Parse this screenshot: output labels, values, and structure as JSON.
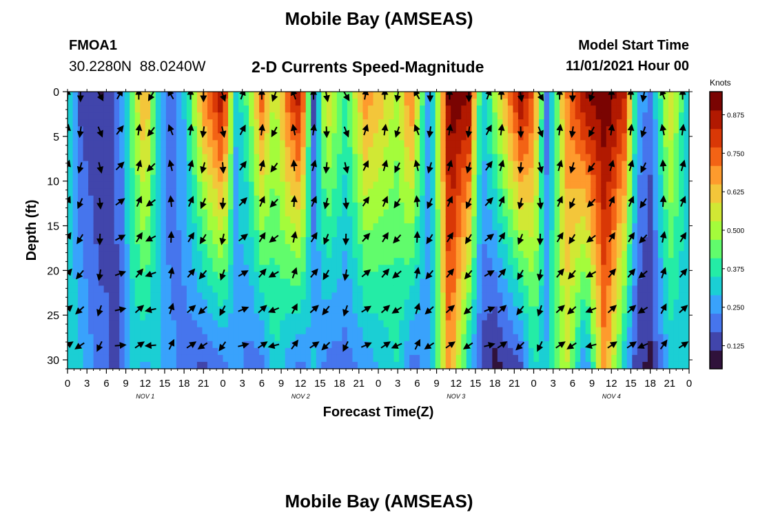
{
  "header": {
    "title": "Mobile Bay (AMSEAS)",
    "station_id": "FMOA1",
    "coordinates": "30.2280N  88.0240W",
    "subtitle": "2-D Currents Speed-Magnitude",
    "model_start_label": "Model Start Time",
    "model_start_value": "11/01/2021 Hour 00"
  },
  "footer": {
    "title": "Mobile Bay (AMSEAS)"
  },
  "chart_data": {
    "type": "heatmap",
    "title": "2-D Currents Speed-Magnitude",
    "xlabel": "Forecast Time(Z)",
    "ylabel": "Depth (ft)",
    "x_hours_range": [
      0,
      96
    ],
    "x_tick_labels": [
      "0",
      "3",
      "6",
      "9",
      "12",
      "15",
      "18",
      "21",
      "0",
      "3",
      "6",
      "9",
      "12",
      "15",
      "18",
      "21",
      "0",
      "3",
      "6",
      "9",
      "12",
      "15",
      "18",
      "21",
      "0",
      "3",
      "6",
      "9",
      "12",
      "15",
      "18",
      "21",
      "0"
    ],
    "day_labels": [
      "NOV 1",
      "NOV 2",
      "NOV 3",
      "NOV 4"
    ],
    "y_range": [
      0,
      31
    ],
    "y_ticks": [
      0,
      5,
      10,
      15,
      20,
      25,
      30
    ],
    "y_inverted": true,
    "colorbar": {
      "unit": "Knots",
      "ticks": [
        0.125,
        0.25,
        0.375,
        0.5,
        0.625,
        0.75,
        0.875
      ],
      "range": [
        0.05,
        0.95
      ],
      "colors": [
        "#30123b",
        "#4145ab",
        "#4675ed",
        "#39a2fc",
        "#1bcfd4",
        "#24eca6",
        "#61fc6c",
        "#a4fc3b",
        "#d1e834",
        "#f3c63a",
        "#fe9b2d",
        "#f36315",
        "#d93806",
        "#b11901",
        "#7a0402"
      ]
    },
    "speed_bands": [
      {
        "hour": 0,
        "top": 0.35,
        "bottom": 0.35
      },
      {
        "hour": 2,
        "top": 0.15,
        "bottom": 0.3
      },
      {
        "hour": 5,
        "top": 0.1,
        "bottom": 0.2
      },
      {
        "hour": 8,
        "top": 0.2,
        "bottom": 0.15
      },
      {
        "hour": 10,
        "top": 0.45,
        "bottom": 0.3
      },
      {
        "hour": 12,
        "top": 0.7,
        "bottom": 0.28
      },
      {
        "hour": 14,
        "top": 0.3,
        "bottom": 0.3
      },
      {
        "hour": 16,
        "top": 0.15,
        "bottom": 0.25
      },
      {
        "hour": 18,
        "top": 0.3,
        "bottom": 0.2
      },
      {
        "hour": 21,
        "top": 0.7,
        "bottom": 0.15
      },
      {
        "hour": 24,
        "top": 0.9,
        "bottom": 0.2
      },
      {
        "hour": 26,
        "top": 0.3,
        "bottom": 0.25
      },
      {
        "hour": 28,
        "top": 0.45,
        "bottom": 0.2
      },
      {
        "hour": 30,
        "top": 0.75,
        "bottom": 0.2
      },
      {
        "hour": 32,
        "top": 0.5,
        "bottom": 0.35
      },
      {
        "hour": 34,
        "top": 0.75,
        "bottom": 0.25
      },
      {
        "hour": 36,
        "top": 0.9,
        "bottom": 0.2
      },
      {
        "hour": 38,
        "top": 0.15,
        "bottom": 0.3
      },
      {
        "hour": 40,
        "top": 0.6,
        "bottom": 0.2
      },
      {
        "hour": 43,
        "top": 0.4,
        "bottom": 0.2
      },
      {
        "hour": 46,
        "top": 0.7,
        "bottom": 0.25
      },
      {
        "hour": 49,
        "top": 0.6,
        "bottom": 0.3
      },
      {
        "hour": 51,
        "top": 0.5,
        "bottom": 0.35
      },
      {
        "hour": 53,
        "top": 0.75,
        "bottom": 0.2
      },
      {
        "hour": 56,
        "top": 0.2,
        "bottom": 0.25
      },
      {
        "hour": 59,
        "top": 0.95,
        "bottom": 0.7
      },
      {
        "hour": 62,
        "top": 0.9,
        "bottom": 0.3
      },
      {
        "hour": 64,
        "top": 0.3,
        "bottom": 0.15
      },
      {
        "hour": 66,
        "top": 0.5,
        "bottom": 0.08
      },
      {
        "hour": 70,
        "top": 0.9,
        "bottom": 0.15
      },
      {
        "hour": 72,
        "top": 0.75,
        "bottom": 0.35
      },
      {
        "hour": 74,
        "top": 0.2,
        "bottom": 0.3
      },
      {
        "hour": 77,
        "top": 0.7,
        "bottom": 0.55
      },
      {
        "hour": 80,
        "top": 0.9,
        "bottom": 0.2
      },
      {
        "hour": 83,
        "top": 0.95,
        "bottom": 0.7
      },
      {
        "hour": 86,
        "top": 0.85,
        "bottom": 0.3
      },
      {
        "hour": 88,
        "top": 0.3,
        "bottom": 0.12
      },
      {
        "hour": 90,
        "top": 0.2,
        "bottom": 0.1
      },
      {
        "hour": 93,
        "top": 0.6,
        "bottom": 0.3
      },
      {
        "hour": 96,
        "top": 0.3,
        "bottom": 0.3
      }
    ],
    "vector_hours": [
      0,
      2,
      5,
      8,
      11,
      13,
      16,
      19,
      21,
      24,
      27,
      30,
      32,
      35,
      38,
      40,
      43,
      46,
      49,
      51,
      54,
      56,
      59,
      62,
      65,
      67,
      70,
      73,
      76,
      78,
      81,
      84,
      87,
      89,
      92,
      95
    ],
    "vector_depths": [
      0,
      4,
      8,
      12,
      16,
      20,
      24,
      28
    ],
    "vector_directions_deg": [
      0,
      180,
      150,
      30,
      0,
      210,
      330,
      0,
      180,
      160,
      20,
      0,
      200,
      340,
      0,
      170,
      150,
      10,
      0,
      190,
      330,
      180,
      0,
      180,
      20,
      0,
      170,
      150,
      0,
      180,
      200,
      0,
      0,
      190,
      340,
      0
    ]
  }
}
